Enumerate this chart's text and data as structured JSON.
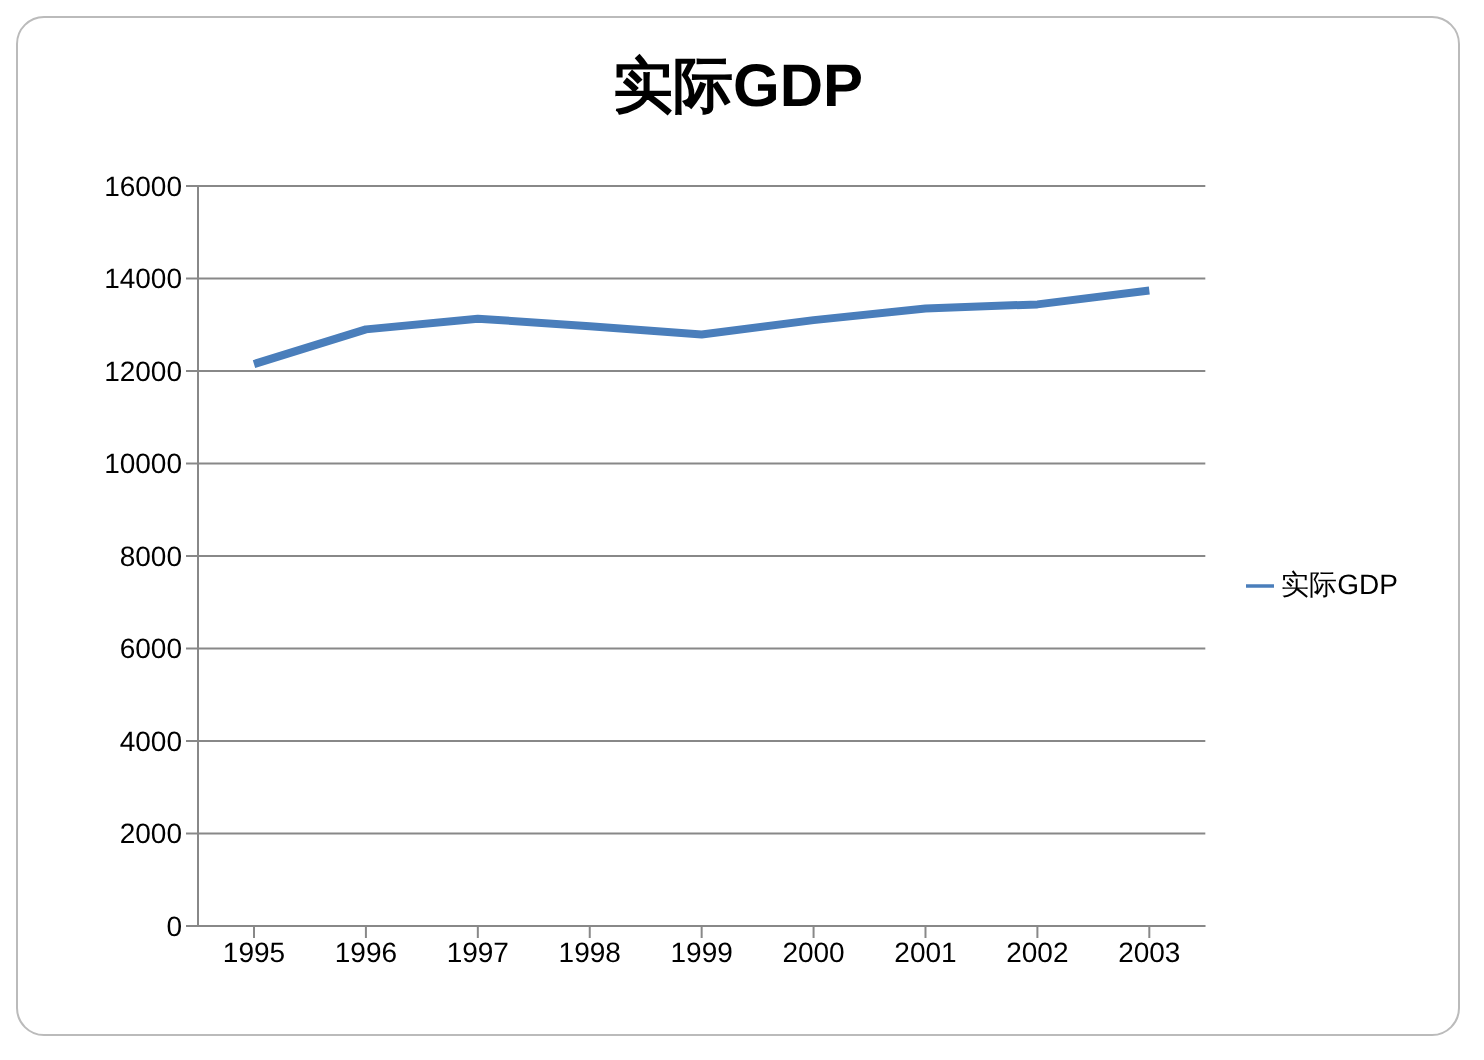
{
  "chart_data": {
    "type": "line",
    "title": "实际GDP",
    "categories": [
      "1995",
      "1996",
      "1997",
      "1998",
      "1999",
      "2000",
      "2001",
      "2002",
      "2003"
    ],
    "series": [
      {
        "name": "实际GDP",
        "color": "#4a7ebb",
        "values": [
          12150,
          12900,
          13130,
          12970,
          12790,
          13100,
          13350,
          13440,
          13740
        ]
      }
    ],
    "ylim": [
      0,
      16000
    ],
    "yticks": [
      0,
      2000,
      4000,
      6000,
      8000,
      10000,
      12000,
      14000,
      16000
    ],
    "grid": "y",
    "legend": "right",
    "marker": "none",
    "line_style": "solid"
  }
}
